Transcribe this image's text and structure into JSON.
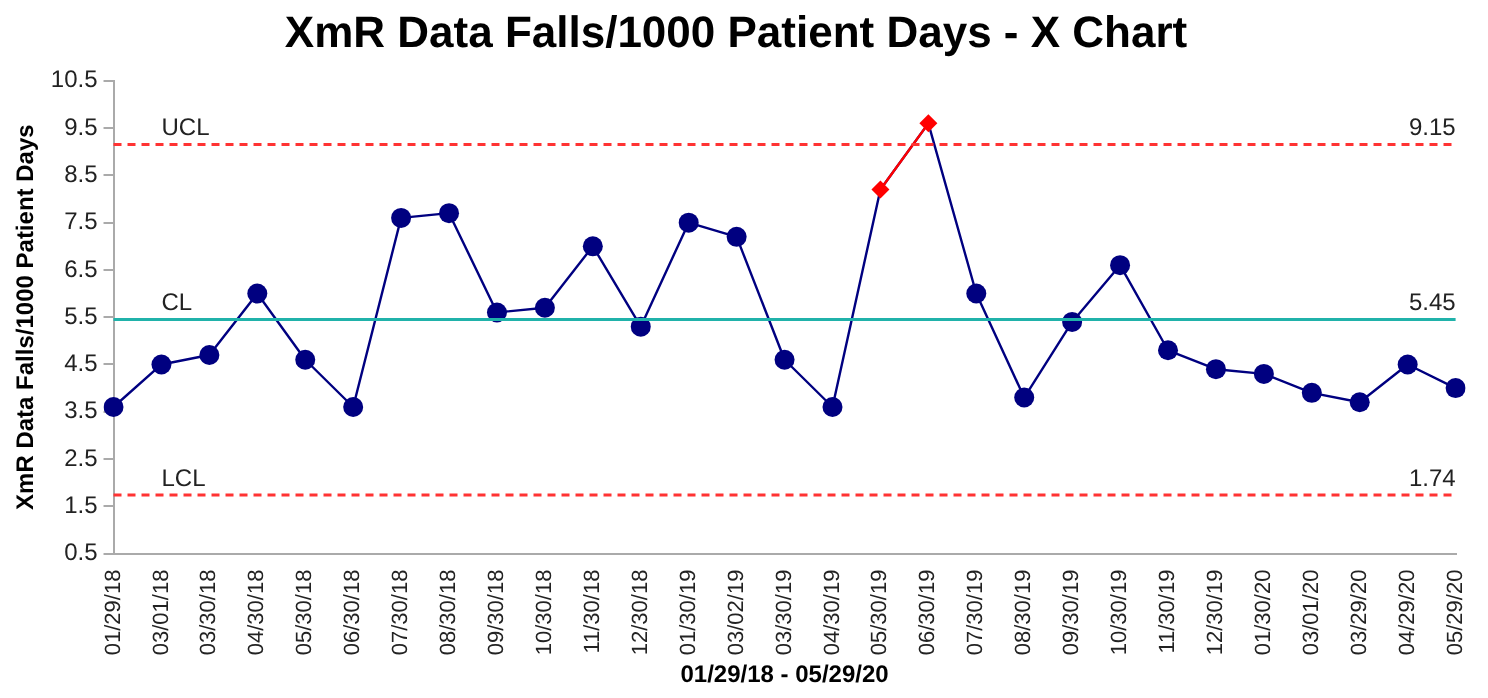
{
  "chart_data": {
    "type": "line",
    "title": "XmR Data Falls/1000 Patient Days - X Chart",
    "xlabel": "01/29/18 - 05/29/20",
    "ylabel": "XmR Data Falls/1000 Patient Days",
    "categories": [
      "01/29/18",
      "03/01/18",
      "03/30/18",
      "04/30/18",
      "05/30/18",
      "06/30/18",
      "07/30/18",
      "08/30/18",
      "09/30/18",
      "10/30/18",
      "11/30/18",
      "12/30/18",
      "01/30/19",
      "03/02/19",
      "03/30/19",
      "04/30/19",
      "05/30/19",
      "06/30/19",
      "07/30/19",
      "08/30/19",
      "09/30/19",
      "10/30/19",
      "11/30/19",
      "12/30/19",
      "01/30/20",
      "03/01/20",
      "03/29/20",
      "04/29/20",
      "05/29/20"
    ],
    "series": [
      {
        "color": "#000080",
        "marker": "circle",
        "values": [
          3.6,
          4.5,
          4.7,
          6.0,
          4.6,
          3.6,
          7.6,
          7.7,
          5.6,
          5.7,
          7.0,
          5.3,
          7.5,
          7.2,
          4.6,
          3.6,
          8.2,
          9.6,
          6.0,
          3.8,
          5.4,
          6.6,
          4.8,
          4.4,
          4.3,
          3.9,
          3.7,
          4.5,
          4.0
        ]
      },
      {
        "color": "#ff0000",
        "marker": "diamond",
        "values": [
          null,
          null,
          null,
          null,
          null,
          null,
          null,
          null,
          null,
          null,
          null,
          null,
          null,
          null,
          null,
          null,
          8.2,
          9.6,
          null,
          null,
          null,
          null,
          null,
          null,
          null,
          null,
          null,
          null,
          null
        ]
      }
    ],
    "ylim": [
      0.5,
      10.5
    ],
    "yticks": [
      0.5,
      1.5,
      2.5,
      3.5,
      4.5,
      5.5,
      6.5,
      7.5,
      8.5,
      9.5,
      10.5
    ],
    "grid": false,
    "legend": false,
    "ref_lines": [
      {
        "axis": "y",
        "value": 9.15,
        "label": "UCL",
        "color": "#ff3333",
        "line_style": "dashed"
      },
      {
        "axis": "y",
        "value": 5.45,
        "label": "CL",
        "color": "#20b2aa",
        "line_style": "solid"
      },
      {
        "axis": "y",
        "value": 1.74,
        "label": "LCL",
        "color": "#ff3333",
        "line_style": "dashed"
      }
    ],
    "annotations": [
      {
        "text": "9.15",
        "y": 9.15
      },
      {
        "text": "5.45",
        "y": 5.45
      },
      {
        "text": "1.74",
        "y": 1.74
      }
    ]
  }
}
